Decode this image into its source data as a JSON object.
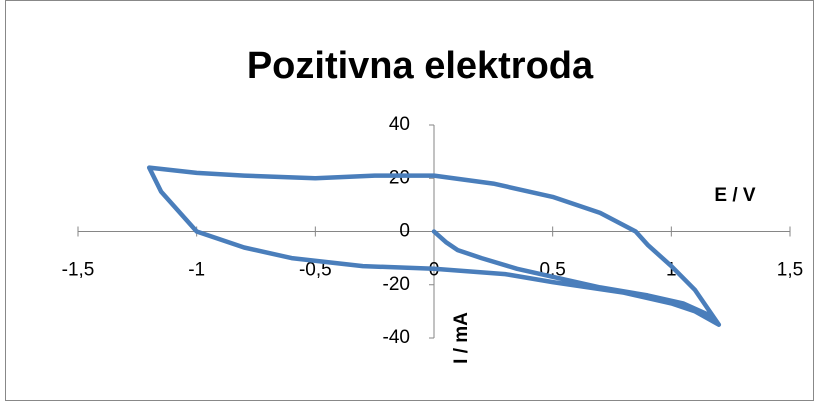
{
  "chart_data": {
    "type": "line",
    "title": "Pozitivna elektroda",
    "x_label": "E / V",
    "y_label": "I / mA",
    "xlim": [
      -1.5,
      1.5
    ],
    "ylim": [
      -40,
      40
    ],
    "xticks": [
      {
        "value": -1.5,
        "label": "-1,5"
      },
      -1,
      {
        "value": -0.5,
        "label": "-0,5"
      },
      0,
      {
        "value": 0.5,
        "label": "0,5"
      },
      1,
      {
        "value": 1.5,
        "label": "1,5"
      }
    ],
    "yticks": [
      -40,
      -20,
      0,
      20,
      40
    ],
    "series": [
      {
        "name": "Pozitivna elektroda",
        "color": "#4a7ebb",
        "x": [
          0,
          0.05,
          0.1,
          0.2,
          0.35,
          0.5,
          0.7,
          0.9,
          1.05,
          1.15,
          1.2,
          1.1,
          1.0,
          0.9,
          0.85,
          0.7,
          0.5,
          0.25,
          0,
          -0.25,
          -0.5,
          -0.8,
          -1.0,
          -1.2,
          -1.15,
          -1.0,
          -0.8,
          -0.6,
          -0.3,
          0,
          0.3,
          0.5,
          0.8,
          1.0,
          1.1,
          1.2
        ],
        "values": [
          0,
          -4,
          -7,
          -10,
          -14,
          -17,
          -21,
          -24,
          -27,
          -31,
          -35,
          -22,
          -13,
          -5,
          0,
          7,
          13,
          18,
          21,
          21,
          20,
          21,
          22,
          24,
          15,
          0,
          -6,
          -10,
          -13,
          -14,
          -16,
          -19,
          -23,
          -27,
          -30,
          -35
        ]
      }
    ]
  }
}
